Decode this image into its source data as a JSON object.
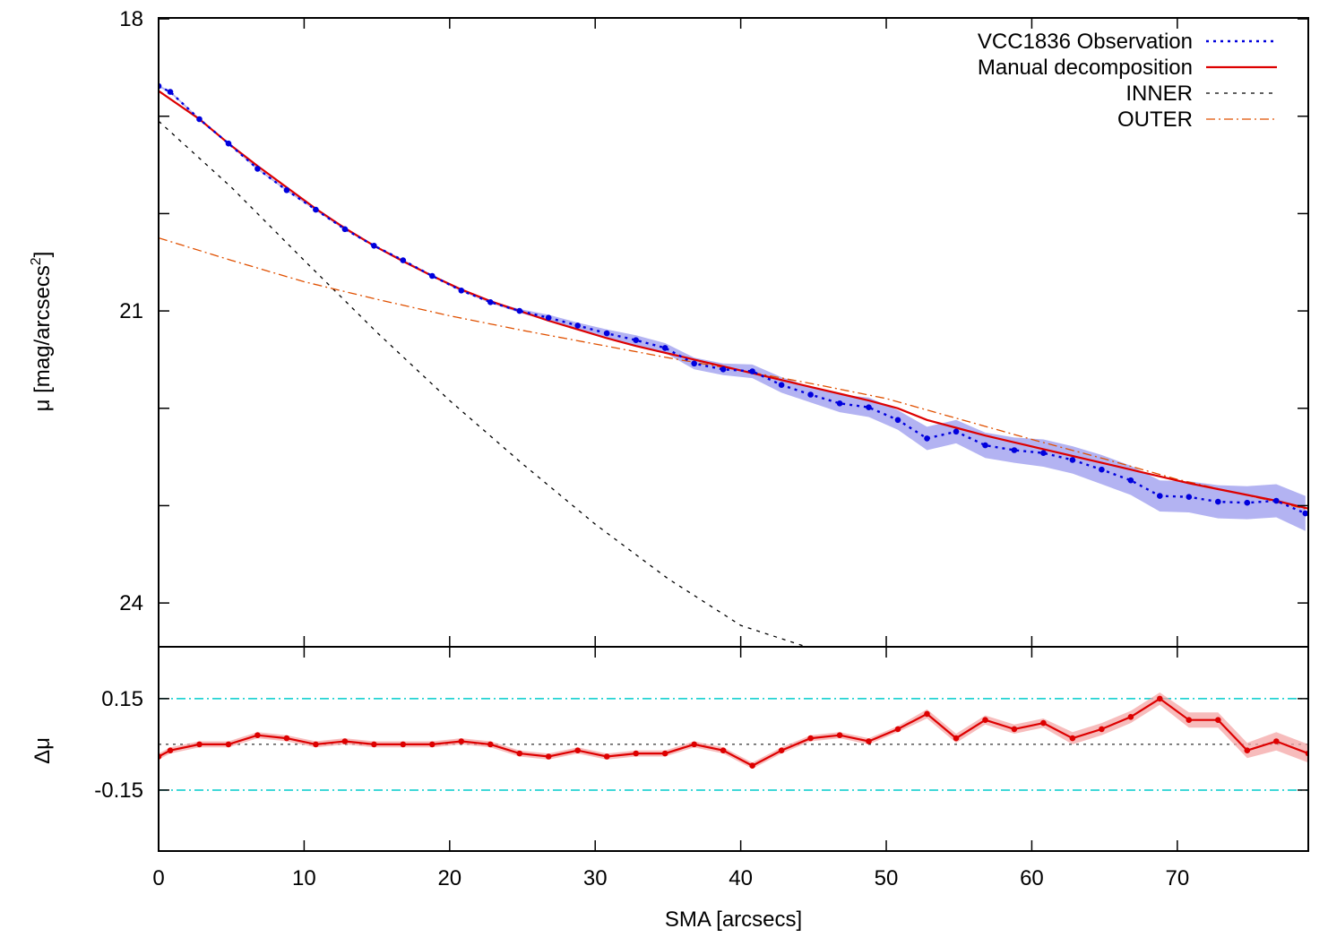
{
  "chart_data": [
    {
      "type": "line",
      "panel": "upper",
      "xlabel": "",
      "ylabel": "μ [mag/arcsecs",
      "ylabel_sup": "2",
      "ylabel_close": "]",
      "xlim": [
        0,
        79
      ],
      "ylim": [
        24.45,
        17.99
      ],
      "y_inverted": true,
      "x_ticks": [
        0,
        10,
        20,
        30,
        40,
        50,
        60,
        70
      ],
      "y_ticks": [
        18,
        19,
        20,
        21,
        22,
        23,
        24
      ],
      "y_tick_labels": [
        "18",
        "",
        "",
        "21",
        "",
        "",
        "24"
      ],
      "grid": false,
      "legend_position": "top-right",
      "series": [
        {
          "name": "VCC1836 Observation",
          "style": "dotted-with-points",
          "color": "#0000dd",
          "band_color": "#9a9aee",
          "x": [
            0,
            0.8,
            2.8,
            4.8,
            6.8,
            8.8,
            10.8,
            12.8,
            14.8,
            16.8,
            18.8,
            20.8,
            22.8,
            24.8,
            26.8,
            28.8,
            30.8,
            32.8,
            34.8,
            36.8,
            38.8,
            40.8,
            42.8,
            44.8,
            46.8,
            48.8,
            50.8,
            52.8,
            54.8,
            56.8,
            58.8,
            60.8,
            62.8,
            64.8,
            66.8,
            68.8,
            70.8,
            72.8,
            74.8,
            76.8,
            78.8
          ],
          "y": [
            18.69,
            18.75,
            19.03,
            19.28,
            19.54,
            19.76,
            19.96,
            20.16,
            20.33,
            20.48,
            20.64,
            20.79,
            20.91,
            21.0,
            21.07,
            21.15,
            21.23,
            21.3,
            21.38,
            21.54,
            21.6,
            21.62,
            21.76,
            21.86,
            21.95,
            21.99,
            22.12,
            22.31,
            22.24,
            22.38,
            22.43,
            22.46,
            22.53,
            22.63,
            22.74,
            22.9,
            22.91,
            22.96,
            22.97,
            22.95,
            23.08
          ],
          "err": [
            0.01,
            0.01,
            0.01,
            0.01,
            0.01,
            0.01,
            0.01,
            0.01,
            0.01,
            0.01,
            0.01,
            0.01,
            0.01,
            0.02,
            0.03,
            0.03,
            0.04,
            0.05,
            0.05,
            0.06,
            0.06,
            0.07,
            0.08,
            0.08,
            0.09,
            0.1,
            0.1,
            0.12,
            0.12,
            0.13,
            0.13,
            0.14,
            0.14,
            0.15,
            0.15,
            0.16,
            0.16,
            0.17,
            0.17,
            0.17,
            0.18
          ]
        },
        {
          "name": "Manual decomposition",
          "style": "solid",
          "color": "#dd0000",
          "x": [
            0,
            2.8,
            4.8,
            6.8,
            8.8,
            10.8,
            12.8,
            14.8,
            16.8,
            18.8,
            20.8,
            22.8,
            24.8,
            26.8,
            28.8,
            30.8,
            32.8,
            34.8,
            36.8,
            38.8,
            40.8,
            42.8,
            44.8,
            46.8,
            48.8,
            50.8,
            52.8,
            54.8,
            56.8,
            58.8,
            60.8,
            62.8,
            64.8,
            66.8,
            68.8,
            70.8,
            72.8,
            74.8,
            76.8,
            79
          ],
          "y": [
            18.74,
            19.03,
            19.28,
            19.51,
            19.73,
            19.95,
            20.15,
            20.33,
            20.49,
            20.64,
            20.78,
            20.9,
            21.0,
            21.1,
            21.19,
            21.28,
            21.36,
            21.43,
            21.5,
            21.57,
            21.64,
            21.71,
            21.78,
            21.85,
            21.92,
            22.0,
            22.12,
            22.2,
            22.28,
            22.35,
            22.42,
            22.49,
            22.56,
            22.63,
            22.7,
            22.77,
            22.83,
            22.89,
            22.95,
            23.03
          ]
        },
        {
          "name": "INNER",
          "style": "dashed",
          "color": "#000000",
          "x": [
            0,
            5,
            10,
            15,
            20,
            25,
            30,
            35,
            40,
            44.5
          ],
          "y": [
            19.05,
            19.73,
            20.48,
            21.22,
            21.92,
            22.57,
            23.19,
            23.75,
            24.23,
            24.45
          ]
        },
        {
          "name": "OUTER",
          "style": "dash-dot",
          "color": "#e05000",
          "x": [
            0,
            5,
            10,
            15,
            20,
            25,
            30,
            35,
            40,
            45,
            50,
            55,
            60,
            65,
            70,
            75,
            79
          ],
          "y": [
            20.25,
            20.48,
            20.7,
            20.88,
            21.05,
            21.2,
            21.34,
            21.48,
            21.61,
            21.75,
            21.9,
            22.11,
            22.32,
            22.52,
            22.73,
            22.9,
            23.04
          ]
        }
      ]
    },
    {
      "type": "line",
      "panel": "lower",
      "xlabel": "SMA [arcsecs]",
      "ylabel": "Δμ",
      "xlim": [
        0,
        79
      ],
      "ylim": [
        -0.35,
        0.32
      ],
      "x_ticks": [
        0,
        10,
        20,
        30,
        40,
        50,
        60,
        70
      ],
      "x_tick_labels": [
        "0",
        "10",
        "20",
        "30",
        "40",
        "50",
        "60",
        "70"
      ],
      "y_ticks": [
        0.15,
        -0.15
      ],
      "y_tick_labels": [
        "0.15",
        "-0.15"
      ],
      "reference_lines": [
        {
          "y": 0.15,
          "style": "dash-dot",
          "color": "#00cccc"
        },
        {
          "y": -0.15,
          "style": "dash-dot",
          "color": "#00cccc"
        },
        {
          "y": 0,
          "style": "dotted",
          "color": "#000000"
        }
      ],
      "grid": false,
      "series": [
        {
          "name": "",
          "style": "solid-with-points",
          "color": "#dd0000",
          "band_color": "#f4a6a6",
          "x": [
            0,
            0.8,
            2.8,
            4.8,
            6.8,
            8.8,
            10.8,
            12.8,
            14.8,
            16.8,
            18.8,
            20.8,
            22.8,
            24.8,
            26.8,
            28.8,
            30.8,
            32.8,
            34.8,
            36.8,
            38.8,
            40.8,
            42.8,
            44.8,
            46.8,
            48.8,
            50.8,
            52.8,
            54.8,
            56.8,
            58.8,
            60.8,
            62.8,
            64.8,
            66.8,
            68.8,
            70.8,
            72.8,
            74.8,
            76.8,
            79
          ],
          "y": [
            -0.04,
            -0.02,
            0.0,
            0.0,
            0.03,
            0.02,
            0.0,
            0.01,
            0.0,
            0.0,
            0.0,
            0.01,
            0.0,
            -0.03,
            -0.04,
            -0.02,
            -0.04,
            -0.03,
            -0.03,
            0.0,
            -0.02,
            -0.07,
            -0.02,
            0.02,
            0.03,
            0.01,
            0.05,
            0.1,
            0.02,
            0.08,
            0.05,
            0.07,
            0.02,
            0.05,
            0.09,
            0.15,
            0.08,
            0.08,
            -0.02,
            0.01,
            -0.03
          ],
          "err": [
            0.01,
            0.01,
            0.01,
            0.01,
            0.01,
            0.01,
            0.01,
            0.01,
            0.01,
            0.01,
            0.01,
            0.01,
            0.01,
            0.01,
            0.01,
            0.01,
            0.01,
            0.01,
            0.01,
            0.01,
            0.01,
            0.01,
            0.01,
            0.01,
            0.01,
            0.01,
            0.01,
            0.015,
            0.015,
            0.015,
            0.015,
            0.015,
            0.02,
            0.02,
            0.02,
            0.02,
            0.025,
            0.025,
            0.025,
            0.03,
            0.03
          ]
        }
      ]
    }
  ]
}
